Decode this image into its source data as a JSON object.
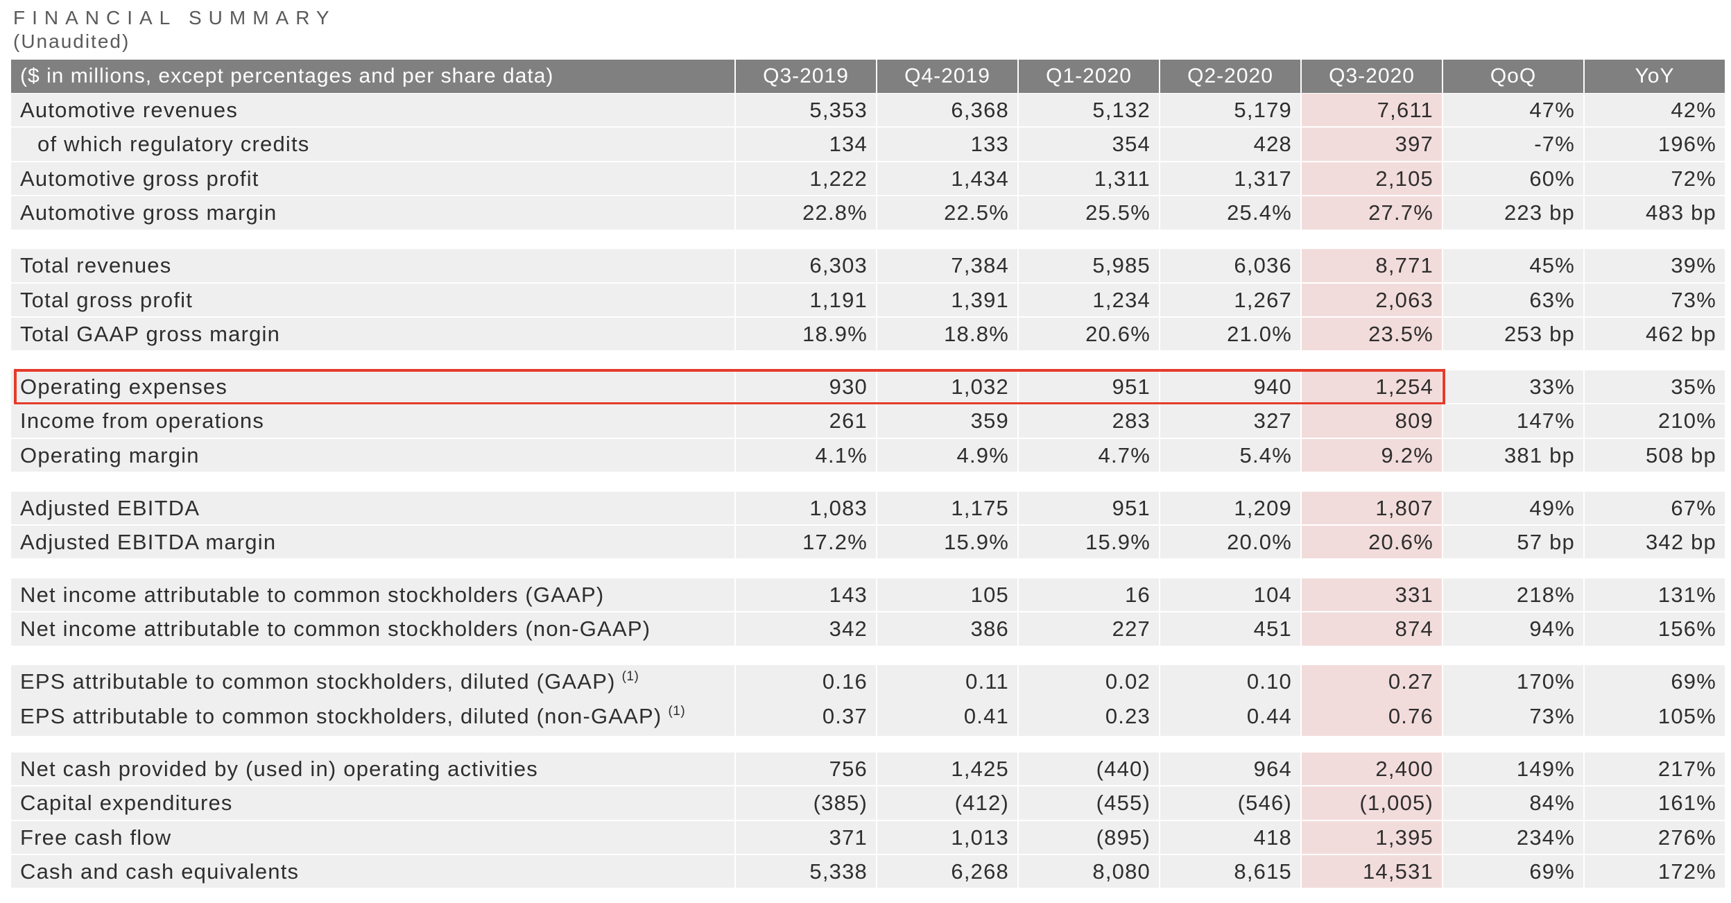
{
  "header": {
    "title": "FINANCIAL SUMMARY",
    "subtitle": "(Unaudited)"
  },
  "colors": {
    "header_bg": "#808080",
    "cell_bg": "#efefef",
    "highlight_column_bg": "#f2dcdb",
    "highlight_box": "#e53b2a",
    "text": "#2e2e2e"
  },
  "table": {
    "columns": [
      "($ in millions, except percentages and per share data)",
      "Q3-2019",
      "Q4-2019",
      "Q1-2020",
      "Q2-2020",
      "Q3-2020",
      "QoQ",
      "YoY"
    ],
    "highlighted_column": 5,
    "groups": [
      {
        "rows": [
          {
            "label": "Automotive revenues",
            "values": [
              "5,353",
              "6,368",
              "5,132",
              "5,179",
              "7,611",
              "47%",
              "42%"
            ]
          },
          {
            "label": "of which regulatory credits",
            "indent": true,
            "values": [
              "134",
              "133",
              "354",
              "428",
              "397",
              "-7%",
              "196%"
            ]
          },
          {
            "label": "Automotive gross profit",
            "values": [
              "1,222",
              "1,434",
              "1,311",
              "1,317",
              "2,105",
              "60%",
              "72%"
            ]
          },
          {
            "label": "Automotive gross margin",
            "values": [
              "22.8%",
              "22.5%",
              "25.5%",
              "25.4%",
              "27.7%",
              "223 bp",
              "483 bp"
            ]
          }
        ]
      },
      {
        "rows": [
          {
            "label": "Total revenues",
            "values": [
              "6,303",
              "7,384",
              "5,985",
              "6,036",
              "8,771",
              "45%",
              "39%"
            ]
          },
          {
            "label": "Total gross profit",
            "values": [
              "1,191",
              "1,391",
              "1,234",
              "1,267",
              "2,063",
              "63%",
              "73%"
            ]
          },
          {
            "label": "Total GAAP gross margin",
            "values": [
              "18.9%",
              "18.8%",
              "20.6%",
              "21.0%",
              "23.5%",
              "253 bp",
              "462 bp"
            ]
          }
        ]
      },
      {
        "rows": [
          {
            "label": "Operating expenses",
            "boxed": true,
            "values": [
              "930",
              "1,032",
              "951",
              "940",
              "1,254",
              "33%",
              "35%"
            ]
          },
          {
            "label": "Income from operations",
            "values": [
              "261",
              "359",
              "283",
              "327",
              "809",
              "147%",
              "210%"
            ]
          },
          {
            "label": "Operating margin",
            "values": [
              "4.1%",
              "4.9%",
              "4.7%",
              "5.4%",
              "9.2%",
              "381 bp",
              "508 bp"
            ]
          }
        ]
      },
      {
        "rows": [
          {
            "label": "Adjusted EBITDA",
            "values": [
              "1,083",
              "1,175",
              "951",
              "1,209",
              "1,807",
              "49%",
              "67%"
            ]
          },
          {
            "label": "Adjusted EBITDA margin",
            "values": [
              "17.2%",
              "15.9%",
              "15.9%",
              "20.0%",
              "20.6%",
              "57 bp",
              "342 bp"
            ]
          }
        ]
      },
      {
        "rows": [
          {
            "label": "Net income attributable to common stockholders (GAAP)",
            "values": [
              "143",
              "105",
              "16",
              "104",
              "331",
              "218%",
              "131%"
            ]
          },
          {
            "label": "Net income attributable to common stockholders (non-GAAP)",
            "values": [
              "342",
              "386",
              "227",
              "451",
              "874",
              "94%",
              "156%"
            ]
          }
        ]
      },
      {
        "rows": [
          {
            "label": "EPS attributable to common stockholders, diluted (GAAP)",
            "footnote": "(1)",
            "values": [
              "0.16",
              "0.11",
              "0.02",
              "0.10",
              "0.27",
              "170%",
              "69%"
            ]
          },
          {
            "label": "EPS attributable to common stockholders, diluted (non-GAAP)",
            "footnote": "(1)",
            "values": [
              "0.37",
              "0.41",
              "0.23",
              "0.44",
              "0.76",
              "73%",
              "105%"
            ]
          }
        ]
      },
      {
        "rows": [
          {
            "label": "Net cash provided by (used in) operating activities",
            "values": [
              "756",
              "1,425",
              "(440)",
              "964",
              "2,400",
              "149%",
              "217%"
            ]
          },
          {
            "label": "Capital expenditures",
            "values": [
              "(385)",
              "(412)",
              "(455)",
              "(546)",
              "(1,005)",
              "84%",
              "161%"
            ]
          },
          {
            "label": "Free cash flow",
            "values": [
              "371",
              "1,013",
              "(895)",
              "418",
              "1,395",
              "234%",
              "276%"
            ]
          },
          {
            "label": "Cash and cash equivalents",
            "values": [
              "5,338",
              "6,268",
              "8,080",
              "8,615",
              "14,531",
              "69%",
              "172%"
            ]
          }
        ]
      }
    ]
  }
}
